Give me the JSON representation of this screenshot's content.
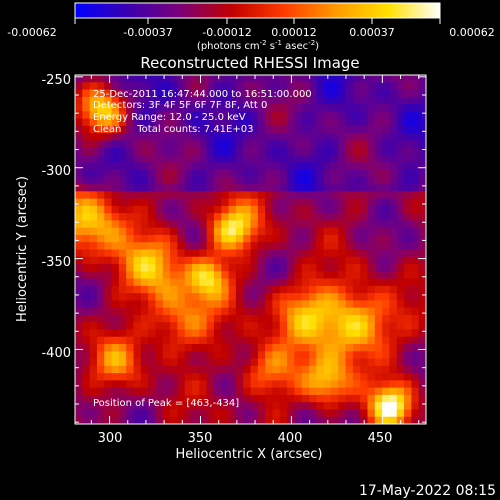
{
  "colorbar": {
    "ticks": [
      "-0.00062",
      "-0.00037",
      "-0.00012",
      "0.00012",
      "0.00037",
      "0.00062"
    ],
    "units_pre": "(photons cm",
    "units_exp1": "-2",
    "units_mid1": " s",
    "units_exp2": "-1",
    "units_mid2": " asec",
    "units_exp3": "-2",
    "units_post": ")",
    "stops": [
      "#0000ff",
      "#3a00b0",
      "#7a007a",
      "#c00000",
      "#ff3a00",
      "#ff9a00",
      "#ffe000",
      "#ffffff"
    ]
  },
  "chart_data": {
    "type": "heatmap",
    "title": "Reconstructed RHESSI Image",
    "xlabel": "Heliocentric X (arcsec)",
    "ylabel": "Heliocentric Y (arcsec)",
    "xlim": [
      281,
      474
    ],
    "ylim": [
      -441,
      -249
    ],
    "xticks": [
      300,
      350,
      400,
      450
    ],
    "yticks": [
      -250,
      -300,
      -350,
      -400
    ],
    "value_range": [
      -0.00062,
      0.00062
    ],
    "peak": [
      463,
      -434
    ],
    "annotations": [
      "25-Dec-2011 16:47:44.000 to 16:51:00.000",
      "Detectors: 3F 4F 5F 6F 7F 8F, Att 0",
      "Energy Range: 12.0 - 25.0 keV",
      "Clean     Total counts: 7.41E+03",
      "Position of Peak = [463,-434]"
    ]
  },
  "footer": {
    "date": "17-May-2022 08:15"
  }
}
